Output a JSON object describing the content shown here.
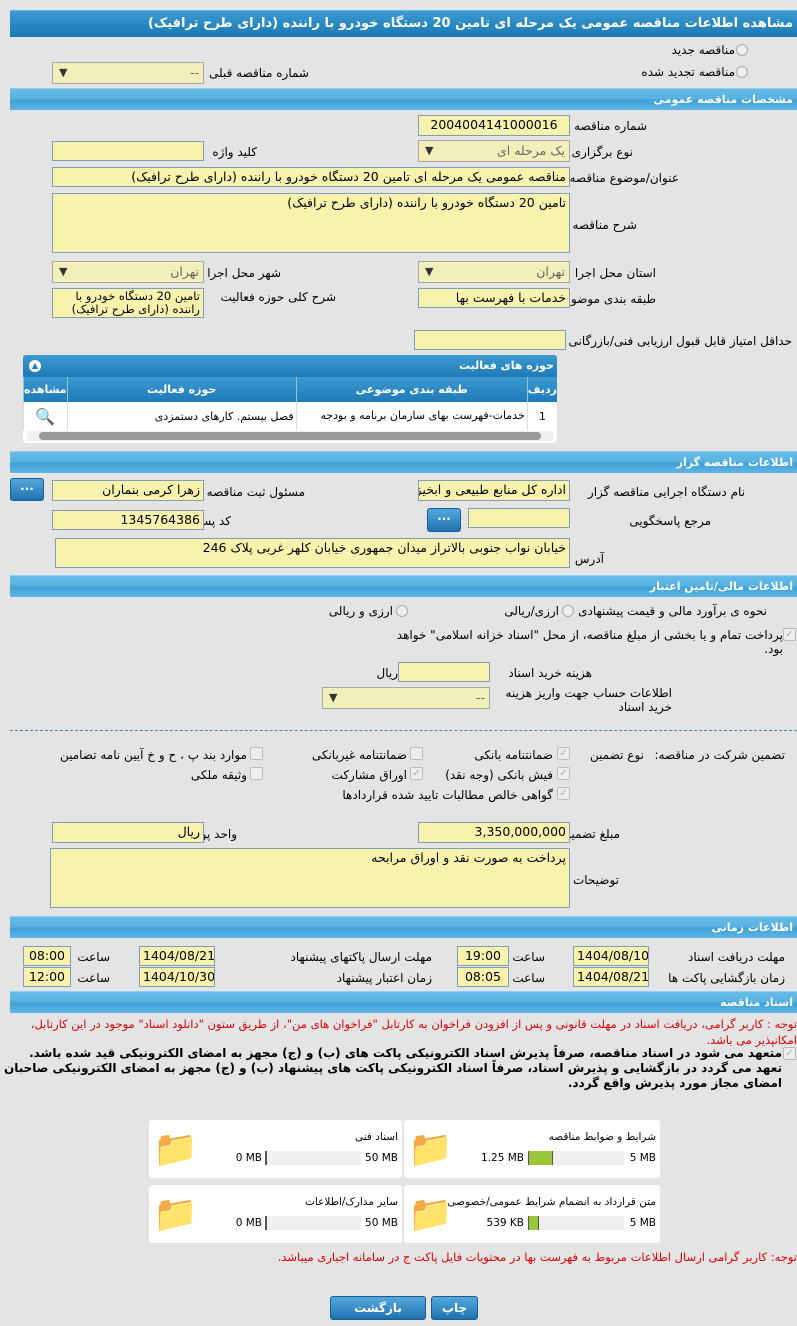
{
  "title": "مشاهده اطلاعات مناقصه عمومی یک مرحله ای تامین 20 دستگاه خودرو با راننده (دارای طرح ترافیک)",
  "top": {
    "new_tender": "مناقصه جدید",
    "renewed_tender": "مناقصه تجدید شده",
    "prev_no_label": "شماره مناقصه قبلی",
    "prev_no_value": "--"
  },
  "general": {
    "header": "مشخصات مناقصه عمومی",
    "tender_no_label": "شماره مناقصه",
    "tender_no": "2004004141000016",
    "type_label": "نوع برگزاری",
    "type_value": "یک مرحله ای",
    "keyword_label": "کلید واژه",
    "keyword": "",
    "subject_label": "عنوان/موضوع مناقصه",
    "subject": "مناقصه عمومی یک مرحله ای تامین 20 دستگاه خودرو با راننده (دارای طرح ترافیک)",
    "desc_label": "شرح مناقصه",
    "desc": "تامین 20 دستگاه خودرو با راننده (دارای طرح ترافیک)",
    "province_label": "استان محل اجرا",
    "province": "تهران",
    "city_label": "شهر محل اجرا",
    "city": "تهران",
    "category_label": "طبقه بندی موضوعی",
    "category": "خدمات با فهرست بها",
    "scope_label": "شرح کلی حوزه فعالیت",
    "scope": "تامین 20 دستگاه خودرو با راننده (دارای طرح ترافیک)",
    "min_score_label": "حداقل امتیاز قابل قبول ارزیابی فنی/بازرگانی",
    "min_score": ""
  },
  "activity": {
    "header": "حوزه های فعالیت",
    "columns": [
      "ردیف",
      "طبقه بندی موضوعی",
      "حوزه فعالیت",
      "مشاهده"
    ],
    "rows": [
      {
        "no": "1",
        "category": "خدمات-فهرست بهای سازمان برنامه و بودجه",
        "scope": "فصل بیستم. کارهای دستمزدی"
      }
    ]
  },
  "organizer": {
    "header": "اطلاعات مناقصه گزار",
    "org_label": "نام دستگاه اجرایی مناقصه گزار",
    "org": "اداره کل منابع طبیعی و ابخیزداری",
    "resp_label": "مسئول ثبت مناقصه",
    "resp": "زهرا کرمی بنماران",
    "ref_label": "مرجع پاسخگویی",
    "ref": "",
    "postal_label": "کد پستی",
    "postal": "1345764386",
    "addr_label": "آدرس",
    "addr": "خیابان نواب جنوبی بالاتراز میدان جمهوری خیابان کلهر غربی پلاک 246",
    "dots": "..."
  },
  "finance": {
    "header": "اطلاعات مالی/تامین اعتبار",
    "method_label": "نحوه ی برآورد مالی و قیمت پیشنهادی",
    "opt1": "ارزی/ریالی",
    "opt2": "ارزی و ریالی",
    "treasury": "پرداخت تمام و یا بخشی از مبلغ مناقصه، از محل \"اسناد خزانه اسلامی\" خواهد بود.",
    "doc_cost_label": "هزینه خرید اسناد",
    "doc_cost": "",
    "rial": "ریال",
    "account_label": "اطلاعات حساب جهت واریز هزینه خرید اسناد",
    "account": "--"
  },
  "guarantee": {
    "label": "تضمین شرکت در مناقصه:",
    "type_label": "نوع تضمین",
    "items": [
      {
        "label": "ضمانتنامه بانکی",
        "checked": true
      },
      {
        "label": "ضمانتنامه غیربانکی",
        "checked": false
      },
      {
        "label": "موارد بند پ ، ح و خ آیین نامه تضامین",
        "checked": false
      },
      {
        "label": "فیش بانکی (وجه نقد)",
        "checked": true
      },
      {
        "label": "اوراق مشارکت",
        "checked": true
      },
      {
        "label": "وثیقه ملکی",
        "checked": false
      },
      {
        "label": "گواهی خالص مطالبات تایید شده قراردادها",
        "checked": true
      }
    ],
    "amount_label": "مبلغ تضمین",
    "amount": "3,350,000,000",
    "currency_label": "واحد پول",
    "currency": "ریال",
    "notes_label": "توضیحات",
    "notes": "پرداخت به صورت نقد و اوراق مرابحه"
  },
  "timing": {
    "header": "اطلاعات زمانی",
    "doc_receive_label": "مهلت دریافت اسناد",
    "doc_receive_date": "1404/08/10",
    "doc_receive_time": "19:00",
    "send_label": "مهلت ارسال پاکتهای پیشنهاد",
    "send_date": "1404/08/21",
    "send_time": "08:00",
    "open_label": "زمان بازگشایی پاکت ها",
    "open_date": "1404/08/21",
    "open_time": "08:05",
    "validity_label": "زمان اعتبار پیشنهاد",
    "validity_date": "1404/10/30",
    "validity_time": "12:00",
    "time_label": "ساعت"
  },
  "docs": {
    "header": "اسناد مناقصه",
    "notice": "توجه : کاربر گرامی، دریافت اسناد در مهلت قانونی و پس از افزودن فراخوان به کارتابل \"فراخوان های من\"، از طریق ستون \"دانلود اسناد\" موجود در این کارتابل، امکانپذیر می باشد.",
    "commit": "متعهد می شود در اسناد مناقصه، صرفاً پذیرش اسناد الکترونیکی پاکت های (ب) و (ج) مجهز به امضای الکترونیکی قید شده باشد. تعهد می گردد در بازگشایی و پذیرش اسناد، صرفاً اسناد الکترونیکی پاکت های پیشنهاد (ب) و (ج) مجهز به امضای الکترونیکی صاحبان امضای مجاز مورد پذیرش واقع گردد.",
    "files": [
      {
        "name": "شرایط و ضوابط مناقصه",
        "size": "1.25 MB",
        "max": "5 MB",
        "fraction": 0.25
      },
      {
        "name": "اسناد فنی",
        "size": "0 MB",
        "max": "50 MB",
        "fraction": 0
      },
      {
        "name": "متن قرارداد به انضمام شرایط عمومی/خصوصی",
        "size": "539 KB",
        "max": "5 MB",
        "fraction": 0.105
      },
      {
        "name": "سایر مدارک/اطلاعات",
        "size": "0 MB",
        "max": "50 MB",
        "fraction": 0
      }
    ],
    "note2": "توجه: کاربر گرامی ارسال اطلاعات مربوط به فهرست بها در محتویات فایل پاکت ج در سامانه اجباری میباشد."
  },
  "buttons": {
    "print": "چاپ",
    "back": "بازگشت"
  },
  "colors": {
    "field": "#f7f3ad",
    "header": "#1a78b4",
    "section": "#56b0e0",
    "warning": "#e00000",
    "progress": "#9ac73a"
  }
}
